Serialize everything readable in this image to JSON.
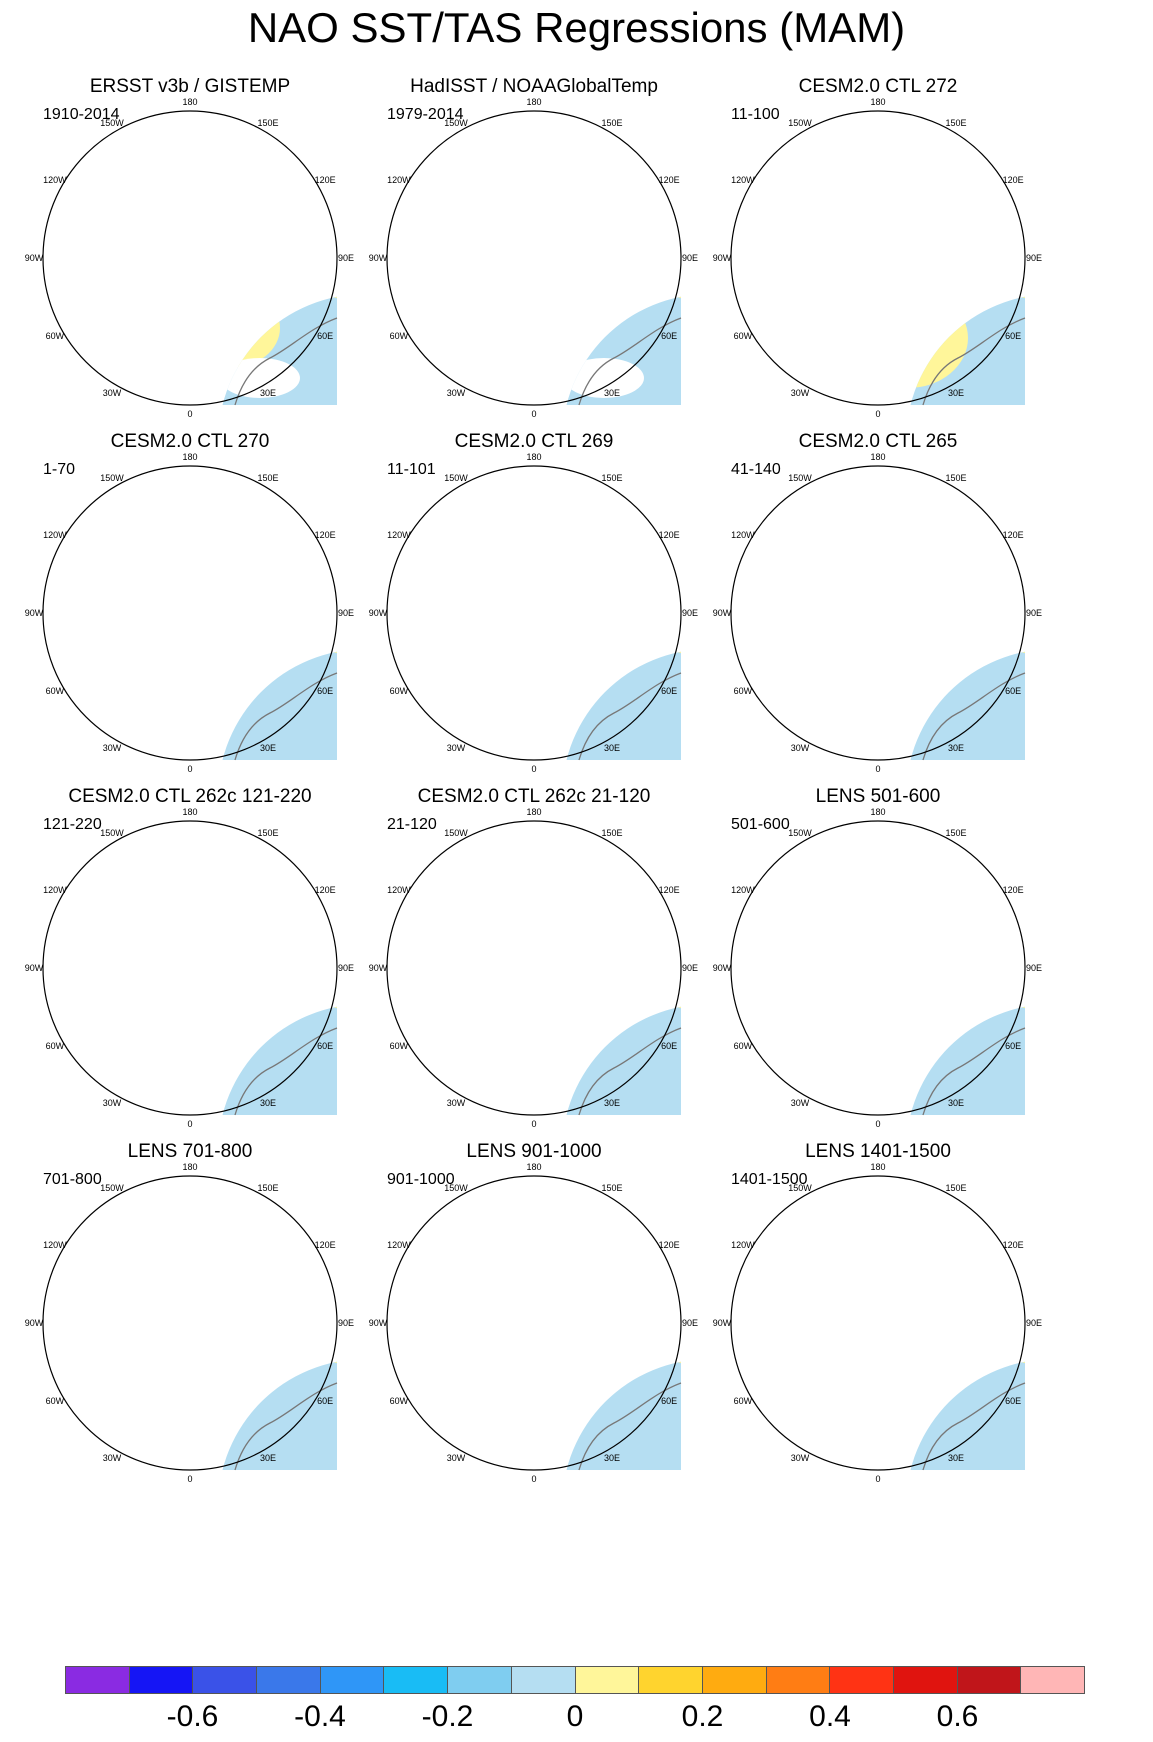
{
  "title": "NAO SST/TAS Regressions (MAM)",
  "panels": [
    {
      "title": "ERSST v3b / GISTEMP",
      "period": "1910-2014",
      "obs": true
    },
    {
      "title": "HadISST / NOAAGlobalTemp",
      "period": "1979-2014",
      "obs": true
    },
    {
      "title": "CESM2.0 CTL 272",
      "period": "11-100",
      "obs": false
    },
    {
      "title": "CESM2.0 CTL 270",
      "period": "1-70",
      "obs": false
    },
    {
      "title": "CESM2.0 CTL 269",
      "period": "11-101",
      "obs": false
    },
    {
      "title": "CESM2.0 CTL 265",
      "period": "41-140",
      "obs": false
    },
    {
      "title": "CESM2.0 CTL 262c 121-220",
      "period": "121-220",
      "obs": false
    },
    {
      "title": "CESM2.0 CTL 262c 21-120",
      "period": "21-120",
      "obs": false
    },
    {
      "title": "LENS 501-600",
      "period": "501-600",
      "obs": false
    },
    {
      "title": "LENS 701-800",
      "period": "701-800",
      "obs": false
    },
    {
      "title": "LENS 901-1000",
      "period": "901-1000",
      "obs": false
    },
    {
      "title": "LENS 1401-1500",
      "period": "1401-1500",
      "obs": false
    }
  ],
  "longitude_labels": [
    "180",
    "150E",
    "120E",
    "90E",
    "60E",
    "30E",
    "0",
    "30W",
    "60W",
    "90W",
    "120W",
    "150W"
  ],
  "colorbar": {
    "colors": [
      "#8a2be2",
      "#1515f5",
      "#3a52e8",
      "#3a78ea",
      "#2f96f7",
      "#19bcf5",
      "#7fcdf0",
      "#b5def2",
      "#fff69a",
      "#ffd42e",
      "#ffab10",
      "#ff7d14",
      "#ff3314",
      "#e0140f",
      "#c0151a",
      "#ffb6b6"
    ],
    "tick_labels": [
      "-0.6",
      "-0.4",
      "-0.2",
      "0",
      "0.2",
      "0.4",
      "0.6"
    ]
  }
}
